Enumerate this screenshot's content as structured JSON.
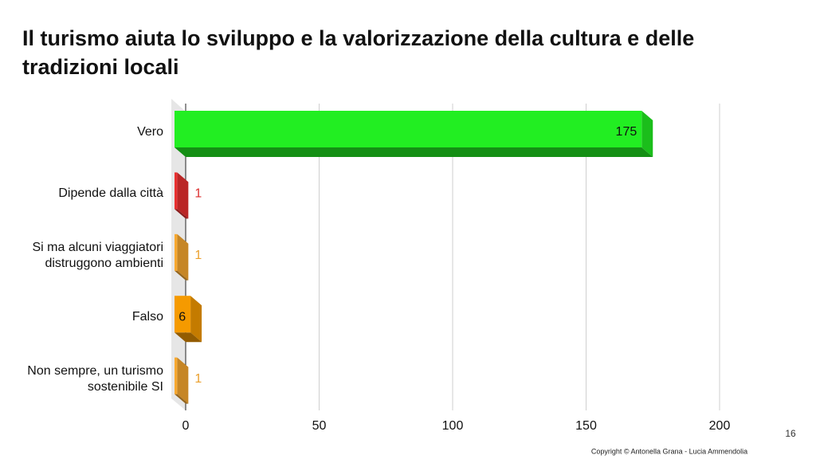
{
  "slide": {
    "page_number": "16",
    "copyright": "Copyright © Antonella Grana - Lucia Ammendolia"
  },
  "chart_data": {
    "type": "bar",
    "orientation": "horizontal",
    "title": "Il turismo aiuta lo sviluppo e la valorizzazione della cultura e delle tradizioni locali",
    "categories": [
      "Vero",
      "Dipende dalla città",
      "Si ma alcuni viaggiatori distruggono ambienti",
      "Falso",
      "Non sempre, un turismo sostenibile SI"
    ],
    "values": [
      175,
      1,
      1,
      6,
      1
    ],
    "colors": [
      "#22ee22",
      "#e83030",
      "#f7a830",
      "#f59a00",
      "#f7a830"
    ],
    "xlim": [
      0,
      200
    ],
    "xticks": [
      0,
      50,
      100,
      150,
      200
    ],
    "grid": true
  }
}
